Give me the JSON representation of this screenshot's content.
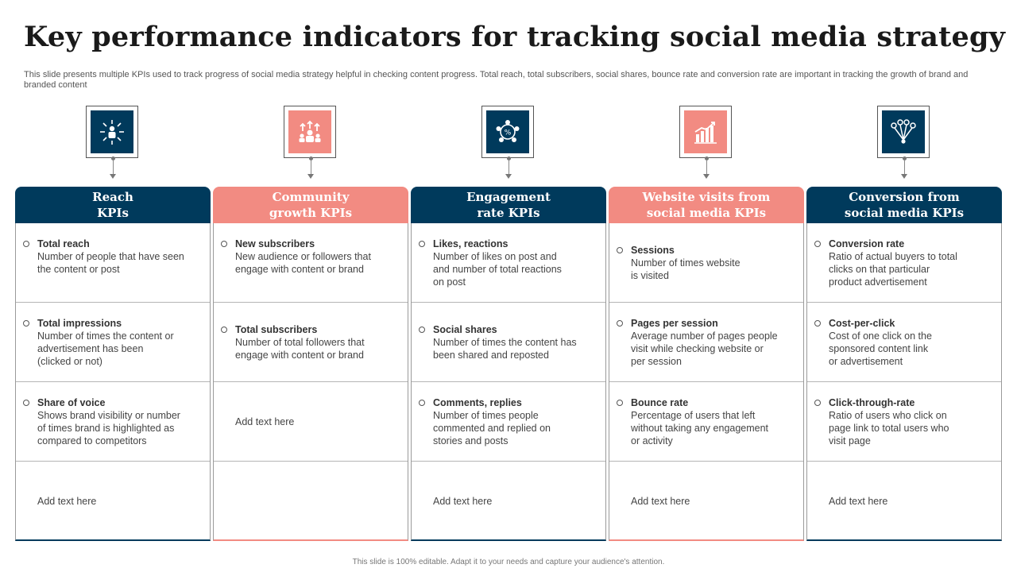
{
  "page": {
    "title": "Key performance indicators for tracking social media strategy",
    "subtitle": "This slide presents multiple KPIs used to track progress of social media strategy helpful in checking content progress. Total reach, total subscribers, social shares, bounce rate and conversion rate are important in tracking the growth of brand and branded content",
    "footer": "This slide is 100% editable. Adapt it to your needs and capture your audience's attention."
  },
  "colors": {
    "navy": "#003a5c",
    "salmon": "#f28b82"
  },
  "columns": [
    {
      "header": "Reach\nKPIs",
      "theme": "navy",
      "icon": "people-reach-icon",
      "cells": [
        {
          "title": "Total reach",
          "desc": "Number of people that have seen\nthe content or post"
        },
        {
          "title": "Total impressions",
          "desc": "Number of times the content or\nadvertisement has been\n(clicked or not)"
        },
        {
          "title": "Share of voice",
          "desc": "Shows brand visibility or number\nof times brand is highlighted as\ncompared to competitors"
        },
        {
          "placeholder": "Add text here"
        }
      ]
    },
    {
      "header": "Community\ngrowth KPIs",
      "theme": "salmon",
      "icon": "community-growth-icon",
      "cells": [
        {
          "title": "New subscribers",
          "desc": "New audience or followers that\nengage with content or brand"
        },
        {
          "title": "Total subscribers",
          "desc": "Number of total followers that\nengage with content or brand"
        },
        {
          "placeholder": "Add text here"
        },
        {}
      ]
    },
    {
      "header": "Engagement\nrate KPIs",
      "theme": "navy",
      "icon": "engagement-network-icon",
      "cells": [
        {
          "title": "Likes, reactions",
          "desc": "Number of likes on post and\nand number of total reactions\non post"
        },
        {
          "title": "Social shares",
          "desc": "Number of times the content has\nbeen shared and reposted"
        },
        {
          "title": "Comments, replies",
          "desc": "Number of times people\ncommented and replied on\nstories and posts"
        },
        {
          "placeholder": "Add text here"
        }
      ]
    },
    {
      "header": "Website visits from\nsocial media KPIs",
      "theme": "salmon",
      "icon": "growth-chart-icon",
      "cells": [
        {
          "title": "Sessions",
          "desc": "Number of times website\nis visited"
        },
        {
          "title": "Pages per session",
          "desc": "Average number of pages people\nvisit while checking website or\nper session"
        },
        {
          "title": "Bounce rate",
          "desc": "Percentage of users that left\nwithout taking any engagement\nor activity"
        },
        {
          "placeholder": "Add text here"
        }
      ]
    },
    {
      "header": "Conversion from\nsocial media KPIs",
      "theme": "navy",
      "icon": "conversion-funnel-icon",
      "cells": [
        {
          "title": "Conversion rate",
          "desc": "Ratio of actual buyers to total\nclicks on that particular\nproduct advertisement"
        },
        {
          "title": "Cost-per-click",
          "desc": "Cost of one click on the\nsponsored content link\nor advertisement"
        },
        {
          "title": "Click-through-rate",
          "desc": "Ratio of users who click on\npage link to total users who\nvisit page"
        },
        {
          "placeholder": "Add text here"
        }
      ]
    }
  ]
}
